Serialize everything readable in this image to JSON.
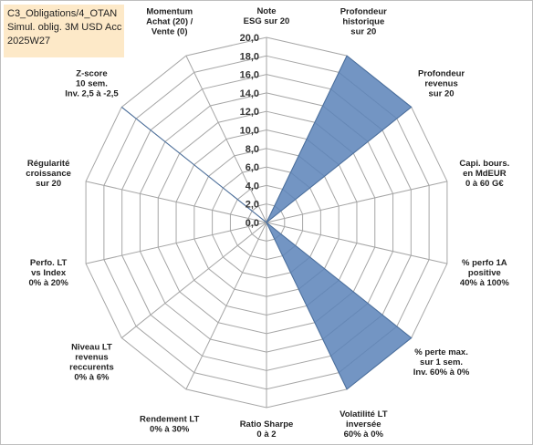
{
  "info": {
    "line1": "C3_Obligations/4_OTAN",
    "line2": "Simul. oblig. 3M USD Acc",
    "line3": "2025W27"
  },
  "colors": {
    "fill": "#5b82b8",
    "stroke": "#4a6f9e",
    "grid": "#a6a6a6"
  },
  "chart_data": {
    "type": "radar",
    "rmax": 20,
    "tick_step": 2,
    "tick_labels": [
      "0,0",
      "2,0",
      "4,0",
      "6,0",
      "8,0",
      "10,0",
      "12,0",
      "14,0",
      "16,0",
      "18,0",
      "20,0"
    ],
    "axes": [
      {
        "label": [
          "Note",
          "ESG sur 20"
        ],
        "value": 0
      },
      {
        "label": [
          "Profondeur",
          "historique",
          "sur 20"
        ],
        "value": 20
      },
      {
        "label": [
          "Profondeur",
          "revenus",
          "sur 20"
        ],
        "value": 20
      },
      {
        "label": [
          "Capi. bours.",
          "en MdEUR",
          "0 à 60 G€"
        ],
        "value": 0
      },
      {
        "label": [
          "% perfo 1A",
          "positive",
          "40% à 100%"
        ],
        "value": 0
      },
      {
        "label": [
          "% perte max.",
          "sur 1 sem.",
          "Inv. 60% à 0%"
        ],
        "value": 20
      },
      {
        "label": [
          "Volatilité LT",
          "inversée",
          "60% à 0%"
        ],
        "value": 20
      },
      {
        "label": [
          "Ratio Sharpe",
          "0 à 2"
        ],
        "value": 0
      },
      {
        "label": [
          "Rendement LT",
          "0% à 30%"
        ],
        "value": 0
      },
      {
        "label": [
          "Niveau LT",
          "revenus",
          "reccurents",
          "0% à 6%"
        ],
        "value": 0
      },
      {
        "label": [
          "Perfo. LT",
          "vs Index",
          "0% à 20%"
        ],
        "value": 0
      },
      {
        "label": [
          "Régularité",
          "croissance",
          "sur 20"
        ],
        "value": 0
      },
      {
        "label": [
          "Z-score",
          "10 sem.",
          "Inv. 2,5 à -2,5"
        ],
        "value": 20
      },
      {
        "label": [
          "Momentum",
          "Achat (20) /",
          "Vente (0)"
        ],
        "value": 0
      }
    ]
  }
}
